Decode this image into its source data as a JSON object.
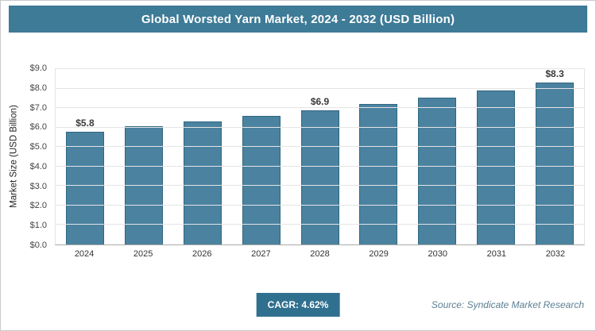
{
  "header": {
    "title": "Global Worsted Yarn Market, 2024 - 2032 (USD Billion)"
  },
  "chart_data": {
    "type": "bar",
    "title": "Global Worsted Yarn Market, 2024 - 2032 (USD Billion)",
    "categories": [
      "2024",
      "2025",
      "2026",
      "2027",
      "2028",
      "2029",
      "2030",
      "2031",
      "2032"
    ],
    "values": [
      5.8,
      6.05,
      6.3,
      6.6,
      6.9,
      7.2,
      7.55,
      7.9,
      8.3
    ],
    "bar_labels": [
      "$5.8",
      "",
      "",
      "",
      "$6.9",
      "",
      "",
      "",
      "$8.3"
    ],
    "xlabel": "",
    "ylabel": "Market Size (USD Billion)",
    "ylim": [
      0,
      9
    ],
    "yticks": [
      "$0.0",
      "$1.0",
      "$2.0",
      "$3.0",
      "$4.0",
      "$5.0",
      "$6.0",
      "$7.0",
      "$8.0",
      "$9.0"
    ],
    "grid": "horizontal",
    "legend": "none",
    "bar_color": "#4b82a0"
  },
  "footer": {
    "cagr_label": "CAGR: 4.62%",
    "source": "Source: Syndicate Market Research"
  },
  "colors": {
    "header_bg": "#3e7b97",
    "bar": "#4b82a0",
    "bar_border": "#2f6781",
    "cagr_bg": "#30708f",
    "source_text": "#5b7f94"
  }
}
